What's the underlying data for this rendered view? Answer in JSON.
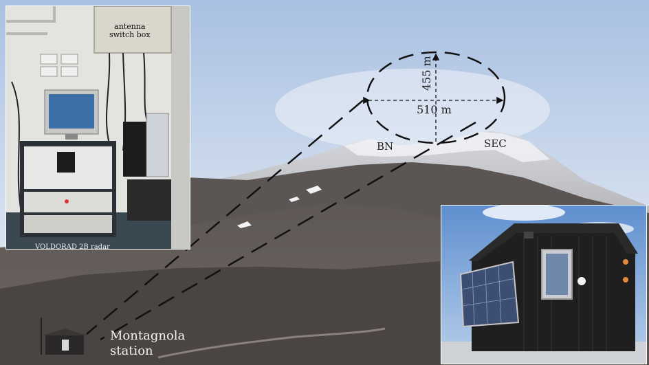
{
  "labels": {
    "height": "455 m",
    "width": "510 m",
    "crater_bn": "BN",
    "crater_sec": "SEC",
    "station_line1": "Montagnola",
    "station_line2": "station",
    "antenna_box_line1": "antenna",
    "antenna_box_line2": "switch box",
    "radar": "VOLDORAD 2B radar"
  },
  "colors": {
    "sky_top": "#b9cde8",
    "sky_bottom": "#dde6f2",
    "snow": "#eef0f4",
    "slope_dark": "#3d3a39",
    "slope_mid": "#5b5653",
    "annotation": "#111111"
  }
}
